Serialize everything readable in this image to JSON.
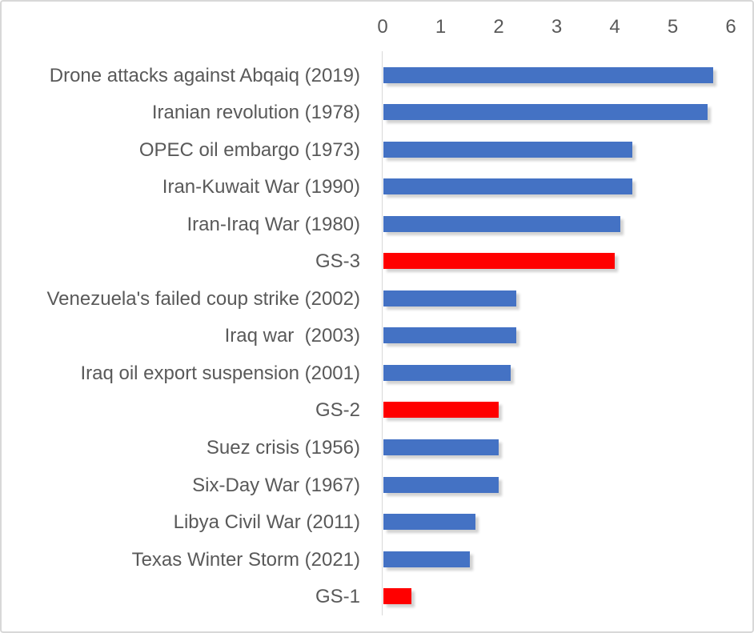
{
  "chart_data": {
    "type": "bar",
    "orientation": "horizontal",
    "title": "",
    "xlabel": "",
    "ylabel": "",
    "xlim": [
      0,
      6
    ],
    "x_ticks": [
      "0",
      "1",
      "2",
      "3",
      "4",
      "5",
      "6"
    ],
    "x_axis_position": "top",
    "grid": false,
    "legend": false,
    "categories": [
      "Drone attacks against Abqaiq (2019)",
      "Iranian revolution (1978)",
      "OPEC oil embargo (1973)",
      "Iran-Kuwait War (1990)",
      "Iran-Iraq War (1980)",
      "GS-3",
      "Venezuela's failed coup strike (2002)",
      "Iraq war  (2003)",
      "Iraq oil export suspension (2001)",
      "GS-2",
      "Suez crisis (1956)",
      "Six-Day War (1967)",
      "Libya Civil War (2011)",
      "Texas Winter Storm (2021)",
      "GS-1"
    ],
    "values": [
      5.7,
      5.6,
      4.3,
      4.3,
      4.1,
      4.0,
      2.3,
      2.3,
      2.2,
      2.0,
      2.0,
      2.0,
      1.6,
      1.5,
      0.5
    ],
    "bar_styles": [
      "default",
      "default",
      "default",
      "default",
      "default",
      "highlight",
      "default",
      "default",
      "default",
      "highlight",
      "default",
      "default",
      "default",
      "default",
      "highlight"
    ],
    "colors": {
      "default": "#4472C4",
      "highlight": "#FF0000",
      "text": "#595959",
      "axis_line": "#D9D9D9",
      "background": "#FFFFFF"
    }
  }
}
